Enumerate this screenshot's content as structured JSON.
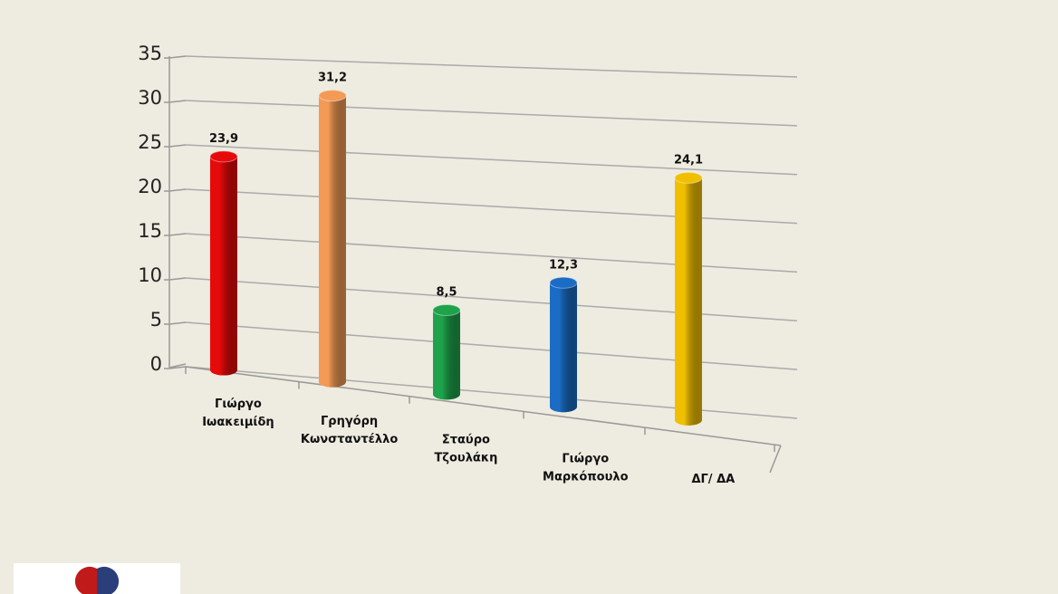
{
  "chart_data": {
    "type": "bar3d",
    "categories": [
      [
        "Γιώργο",
        "Ιωακειμίδη"
      ],
      [
        "Γρηγόρη",
        "Κωνσταντέλλο"
      ],
      [
        "Σταύρο",
        "Τζουλάκη"
      ],
      [
        "Γιώργο",
        "Μαρκόπουλο"
      ],
      [
        "ΔΓ/ ΔΑ"
      ]
    ],
    "values": [
      23.9,
      31.2,
      8.5,
      12.3,
      24.1
    ],
    "value_labels": [
      "23,9",
      "31,2",
      "8,5",
      "12,3",
      "24,1"
    ],
    "colors": [
      "#e60a0a",
      "#f39a55",
      "#1ea24a",
      "#1a6cc4",
      "#f0c000"
    ],
    "ylim": [
      0,
      35
    ],
    "yticks": [
      0,
      5,
      10,
      15,
      20,
      25,
      30,
      35
    ],
    "grid": true
  }
}
